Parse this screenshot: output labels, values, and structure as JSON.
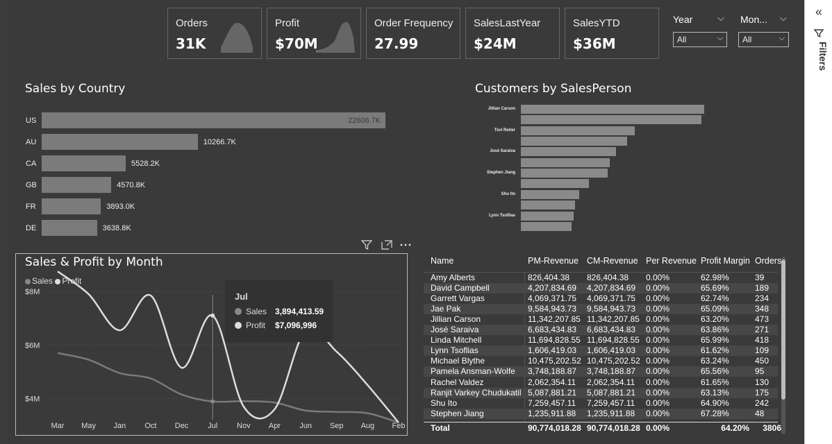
{
  "kpis": [
    {
      "label": "Orders",
      "value": "31K"
    },
    {
      "label": "Profit",
      "value": "$70M"
    },
    {
      "label": "Order Frequency",
      "value": "27.99"
    },
    {
      "label": "SalesLastYear",
      "value": "$24M"
    },
    {
      "label": "SalesYTD",
      "value": "$36M"
    }
  ],
  "slicers": [
    {
      "title": "Year",
      "selected": "All"
    },
    {
      "title": "Mon...",
      "selected": "All"
    }
  ],
  "filters_pane": {
    "label": "Filters",
    "collapse_icon": "double-chevron-right-icon"
  },
  "sales_by_country": {
    "title": "Sales by Country",
    "chart_data": {
      "type": "bar",
      "categories": [
        "US",
        "AU",
        "CA",
        "GB",
        "FR",
        "DE"
      ],
      "values": [
        22606.7,
        10266.7,
        5528.2,
        4570.8,
        3893.0,
        3638.8
      ],
      "labels": [
        "22606.7K",
        "10266.7K",
        "5528.2K",
        "4570.8K",
        "3893.0K",
        "3638.8K"
      ]
    }
  },
  "customers_by_salesperson": {
    "title": "Customers by SalesPerson",
    "chart_data": {
      "type": "bar",
      "tick_labels": [
        "Jillian Carson",
        "Tsvi Reiter",
        "José Saraiva",
        "Stephen Jiang",
        "Shu Ito",
        "Lynn Tsoflias"
      ],
      "values": [
        473,
        466,
        293,
        274,
        246,
        230,
        224,
        175,
        151,
        140,
        136,
        130
      ]
    }
  },
  "sales_profit_by_month": {
    "title": "Sales & Profit by Month",
    "toolbar": [
      "filter-icon",
      "focus-mode-icon",
      "more-options-icon"
    ],
    "legend": [
      {
        "name": "Sales",
        "color": "#888888"
      },
      {
        "name": "Profit",
        "color": "#dddddd"
      }
    ],
    "chart_data": {
      "type": "line",
      "x": [
        "Mar",
        "May",
        "Jan",
        "Oct",
        "Dec",
        "Jul",
        "Nov",
        "Apr",
        "Jun",
        "Sep",
        "Aug",
        "Feb"
      ],
      "y_ticks": [
        "$4M",
        "$6M",
        "$8M"
      ],
      "ylim": [
        3.0,
        9.3
      ],
      "series": [
        {
          "name": "Sales",
          "values": [
            5.7,
            5.45,
            4.95,
            4.75,
            4.15,
            3.89,
            3.9,
            3.85,
            3.55,
            3.5,
            3.45,
            3.1
          ]
        },
        {
          "name": "Profit",
          "values": [
            8.75,
            7.9,
            6.55,
            7.85,
            5.15,
            7.1,
            3.7,
            3.6,
            6.55,
            5.75,
            4.5,
            3.1
          ]
        }
      ]
    },
    "tooltip": {
      "month": "Jul",
      "rows": [
        {
          "label": "Sales",
          "value": "3,894,413.59",
          "color": "#888888"
        },
        {
          "label": "Profit",
          "value": "$7,096,996",
          "color": "#dddddd"
        }
      ]
    }
  },
  "table": {
    "columns": [
      "Name",
      "PM-Revenue",
      "CM-Revenue",
      "Per Revenue",
      "Profit Margin",
      "Orders"
    ],
    "rows": [
      [
        "Amy Alberts",
        "826,404.38",
        "826,404.38",
        "0.00%",
        "62.98%",
        "39"
      ],
      [
        "David Campbell",
        "4,207,834.69",
        "4,207,834.69",
        "0.00%",
        "65.69%",
        "189"
      ],
      [
        "Garrett Vargas",
        "4,069,371.75",
        "4,069,371.75",
        "0.00%",
        "62.74%",
        "234"
      ],
      [
        "Jae Pak",
        "9,584,943.73",
        "9,584,943.73",
        "0.00%",
        "65.09%",
        "348"
      ],
      [
        "Jillian Carson",
        "11,342,207.85",
        "11,342,207.85",
        "0.00%",
        "63.20%",
        "473"
      ],
      [
        "José Saraiva",
        "6,683,434.83",
        "6,683,434.83",
        "0.00%",
        "63.86%",
        "271"
      ],
      [
        "Linda Mitchell",
        "11,694,828.55",
        "11,694,828.55",
        "0.00%",
        "65.99%",
        "418"
      ],
      [
        "Lynn Tsoflias",
        "1,606,419.03",
        "1,606,419.03",
        "0.00%",
        "61.62%",
        "109"
      ],
      [
        "Michael Blythe",
        "10,475,202.52",
        "10,475,202.52",
        "0.00%",
        "63.24%",
        "450"
      ],
      [
        "Pamela Ansman-Wolfe",
        "3,748,188.87",
        "3,748,188.87",
        "0.00%",
        "65.56%",
        "95"
      ],
      [
        "Rachel Valdez",
        "2,062,354.11",
        "2,062,354.11",
        "0.00%",
        "61.65%",
        "130"
      ],
      [
        "Ranjit Varkey Chudukatil",
        "5,087,881.21",
        "5,087,881.21",
        "0.00%",
        "63.13%",
        "175"
      ],
      [
        "Shu Ito",
        "7,259,457.11",
        "7,259,457.11",
        "0.00%",
        "64.90%",
        "242"
      ],
      [
        "Stephen Jiang",
        "1,235,911.88",
        "1,235,911.88",
        "0.00%",
        "67.28%",
        "48"
      ]
    ],
    "total": [
      "Total",
      "90,774,018.28",
      "90,774,018.28",
      "0.00%",
      "64.20%",
      "3806"
    ]
  }
}
